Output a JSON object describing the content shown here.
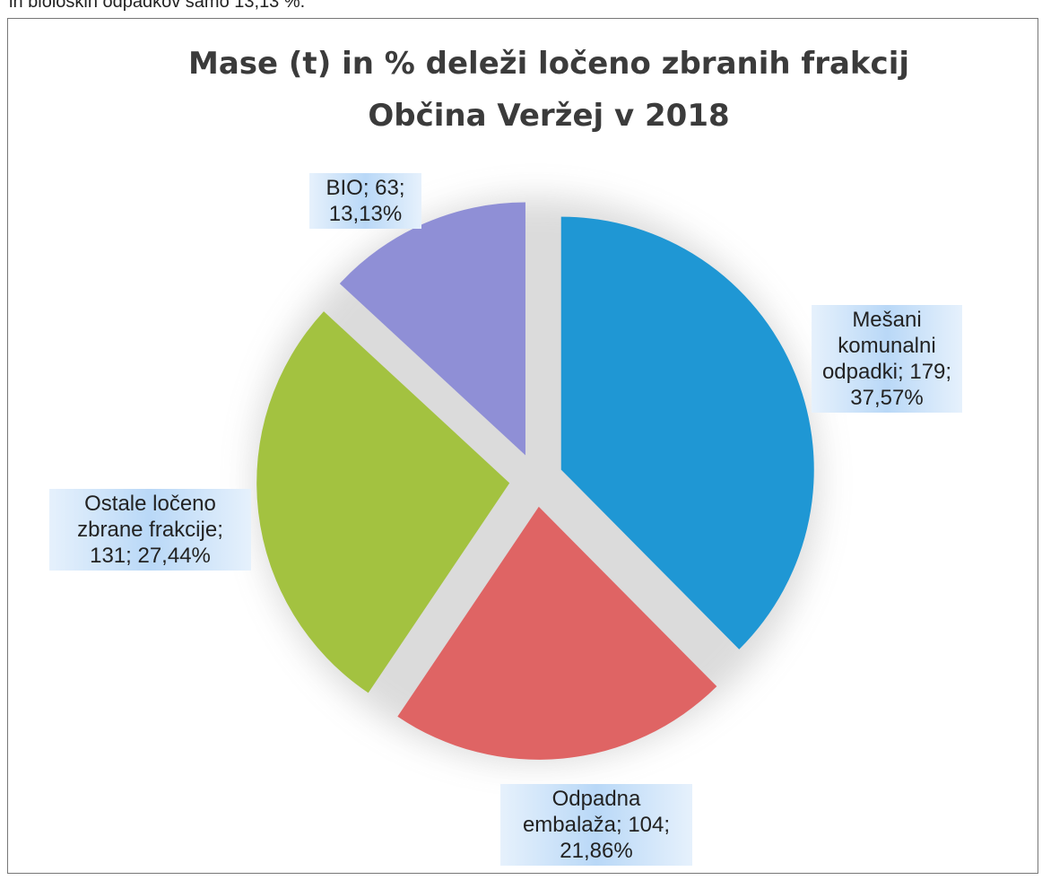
{
  "header_text": "in bioloških odpadkov samo 13,13 %.",
  "chart_data": {
    "type": "pie",
    "title": "Mase (t) in % deleži ločeno zbranih frakcij",
    "subtitle": "Občina Veržej v 2018",
    "values": [
      37.57,
      21.86,
      27.44,
      13.13
    ],
    "value_labels": [
      "Mešani komunalni odpadki; 179; 37,57%",
      "Odpadna embalaža; 104; 21,86%",
      "Ostale ločeno zbrane frakcije; 131; 27,44%",
      "BIO; 63; 13,13%"
    ],
    "colors": [
      "#1f97d4",
      "#df6464",
      "#a3c240",
      "#8f8fd6"
    ]
  }
}
